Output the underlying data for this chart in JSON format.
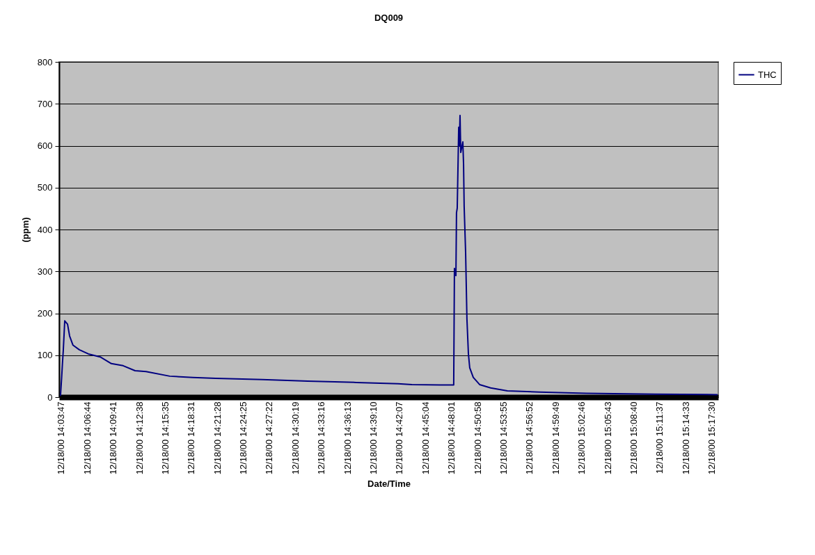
{
  "chart_data": {
    "type": "line",
    "title": "DQ009",
    "xlabel": "Date/Time",
    "ylabel": "(ppm)",
    "x": [
      "2000-12-18T14:03:42",
      "2000-12-18T14:03:50",
      "2000-12-18T14:03:55",
      "2000-12-18T14:04:01",
      "2000-12-18T14:04:11",
      "2000-12-18T14:04:30",
      "2000-12-18T14:04:44",
      "2000-12-18T14:05:07",
      "2000-12-18T14:05:50",
      "2000-12-18T14:06:52",
      "2000-12-18T14:08:12",
      "2000-12-18T14:09:28",
      "2000-12-18T14:10:48",
      "2000-12-18T14:12:09",
      "2000-12-18T14:13:24",
      "2000-12-18T14:16:05",
      "2000-12-18T14:18:42",
      "2000-12-18T14:21:18",
      "2000-12-18T14:26:35",
      "2000-12-18T14:31:43",
      "2000-12-18T14:37:14",
      "2000-12-18T14:41:58",
      "2000-12-18T14:43:32",
      "2000-12-18T14:46:42",
      "2000-12-18T14:48:16",
      "2000-12-18T14:48:21",
      "2000-12-18T14:48:31",
      "2000-12-18T14:48:35",
      "2000-12-18T14:48:40",
      "2000-12-18T14:48:50",
      "2000-12-18T14:48:54",
      "2000-12-18T14:48:59",
      "2000-12-18T14:49:04",
      "2000-12-18T14:49:18",
      "2000-12-18T14:49:23",
      "2000-12-18T14:49:27",
      "2000-12-18T14:49:37",
      "2000-12-18T14:49:46",
      "2000-12-18T14:49:56",
      "2000-12-18T14:50:05",
      "2000-12-18T14:50:29",
      "2000-12-18T14:51:12",
      "2000-12-18T14:52:27",
      "2000-12-18T14:54:21",
      "2000-12-18T14:57:59",
      "2000-12-18T15:03:16",
      "2000-12-18T15:11:09",
      "2000-12-18T15:18:10"
    ],
    "series": [
      {
        "name": "THC",
        "color": "#000080",
        "values": [
          3,
          47,
          78,
          111,
          182,
          174,
          146,
          124,
          113,
          103,
          96,
          80,
          75,
          63,
          61,
          50,
          47,
          45,
          42,
          38,
          35,
          32,
          30,
          29,
          29,
          307,
          290,
          440,
          451,
          644,
          600,
          672,
          584,
          609,
          556,
          456,
          345,
          186,
          103,
          70,
          47,
          30,
          22,
          15,
          12,
          9,
          7,
          6
        ]
      }
    ],
    "xlim": [
      "2000-12-18T14:03:33",
      "2000-12-18T15:18:15"
    ],
    "xticks": [
      {
        "value": "2000-12-18T14:03:47",
        "label": "12/18/00 14:03:47"
      },
      {
        "value": "2000-12-18T14:06:44",
        "label": "12/18/00 14:06:44"
      },
      {
        "value": "2000-12-18T14:09:41",
        "label": "12/18/00 14:09:41"
      },
      {
        "value": "2000-12-18T14:12:38",
        "label": "12/18/00 14:12:38"
      },
      {
        "value": "2000-12-18T14:15:35",
        "label": "12/18/00 14:15:35"
      },
      {
        "value": "2000-12-18T14:18:31",
        "label": "12/18/00 14:18:31"
      },
      {
        "value": "2000-12-18T14:21:28",
        "label": "12/18/00 14:21:28"
      },
      {
        "value": "2000-12-18T14:24:25",
        "label": "12/18/00 14:24:25"
      },
      {
        "value": "2000-12-18T14:27:22",
        "label": "12/18/00 14:27:22"
      },
      {
        "value": "2000-12-18T14:30:19",
        "label": "12/18/00 14:30:19"
      },
      {
        "value": "2000-12-18T14:33:16",
        "label": "12/18/00 14:33:16"
      },
      {
        "value": "2000-12-18T14:36:13",
        "label": "12/18/00 14:36:13"
      },
      {
        "value": "2000-12-18T14:39:10",
        "label": "12/18/00 14:39:10"
      },
      {
        "value": "2000-12-18T14:42:07",
        "label": "12/18/00 14:42:07"
      },
      {
        "value": "2000-12-18T14:45:04",
        "label": "12/18/00 14:45:04"
      },
      {
        "value": "2000-12-18T14:48:01",
        "label": "12/18/00 14:48:01"
      },
      {
        "value": "2000-12-18T14:50:58",
        "label": "12/18/00 14:50:58"
      },
      {
        "value": "2000-12-18T14:53:55",
        "label": "12/18/00 14:53:55"
      },
      {
        "value": "2000-12-18T14:56:52",
        "label": "12/18/00 14:56:52"
      },
      {
        "value": "2000-12-18T14:59:49",
        "label": "12/18/00 14:59:49"
      },
      {
        "value": "2000-12-18T15:02:46",
        "label": "12/18/00 15:02:46"
      },
      {
        "value": "2000-12-18T15:05:43",
        "label": "12/18/00 15:05:43"
      },
      {
        "value": "2000-12-18T15:08:40",
        "label": "12/18/00 15:08:40"
      },
      {
        "value": "2000-12-18T15:11:37",
        "label": "12/18/00 15:11:37"
      },
      {
        "value": "2000-12-18T15:14:33",
        "label": "12/18/00 15:14:33"
      },
      {
        "value": "2000-12-18T15:17:30",
        "label": "12/18/00 15:17:30"
      }
    ],
    "ylim": [
      0,
      800
    ],
    "yticks": [
      0,
      100,
      200,
      300,
      400,
      500,
      600,
      700,
      800
    ],
    "grid": "y",
    "legend": "right",
    "marker": "none",
    "line_style": "solid"
  }
}
